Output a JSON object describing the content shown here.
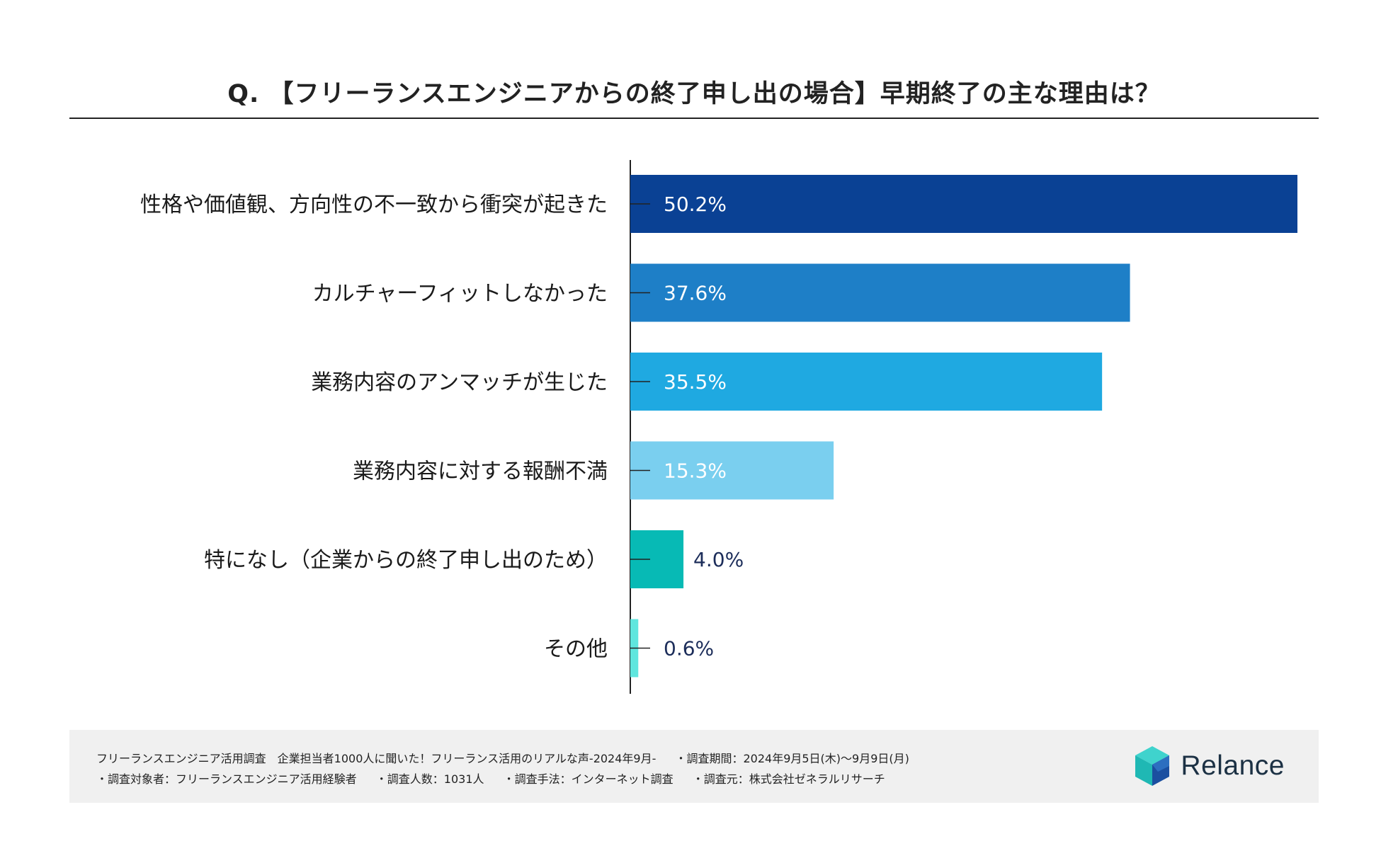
{
  "chart_data": {
    "type": "bar",
    "orientation": "horizontal",
    "title": "Q. 【フリーランスエンジニアからの終了申し出の場合】早期終了の主な理由は？",
    "categories": [
      "性格や価値観、方向性の不一致から衝突が起きた",
      "カルチャーフィットしなかった",
      "業務内容のアンマッチが生じた",
      "業務内容に対する報酬不満",
      "特になし（企業からの終了申し出のため）",
      "その他"
    ],
    "values": [
      50.2,
      37.6,
      35.5,
      15.3,
      4.0,
      0.6
    ],
    "labels": [
      "50.2%",
      "37.6%",
      "35.5%",
      "15.3%",
      "4.0%",
      "0.6%"
    ],
    "colors": [
      "#0a4194",
      "#1e7fc7",
      "#1fa9e1",
      "#7acfef",
      "#07bab5",
      "#5fe6de"
    ],
    "xlim": [
      0,
      50.2
    ],
    "xlabel": "",
    "ylabel": ""
  },
  "footer": {
    "line1": [
      "フリーランスエンジニア活用調査　企業担当者1000人に聞いた！フリーランス活用のリアルな声-2024年9月-",
      "・調査期間：2024年9月5日(木)〜9月9日(月)"
    ],
    "line2": [
      "・調査対象者：フリーランスエンジニア活用経験者",
      "・調査人数：1031人",
      "・調査手法：インターネット調査",
      "・調査元：株式会社ゼネラルリサーチ"
    ]
  },
  "brand": {
    "logo_text": "Relance",
    "icon": "relance-cube-icon",
    "colors": [
      "#22c4c0",
      "#1b4fa0",
      "#1c3144"
    ]
  }
}
